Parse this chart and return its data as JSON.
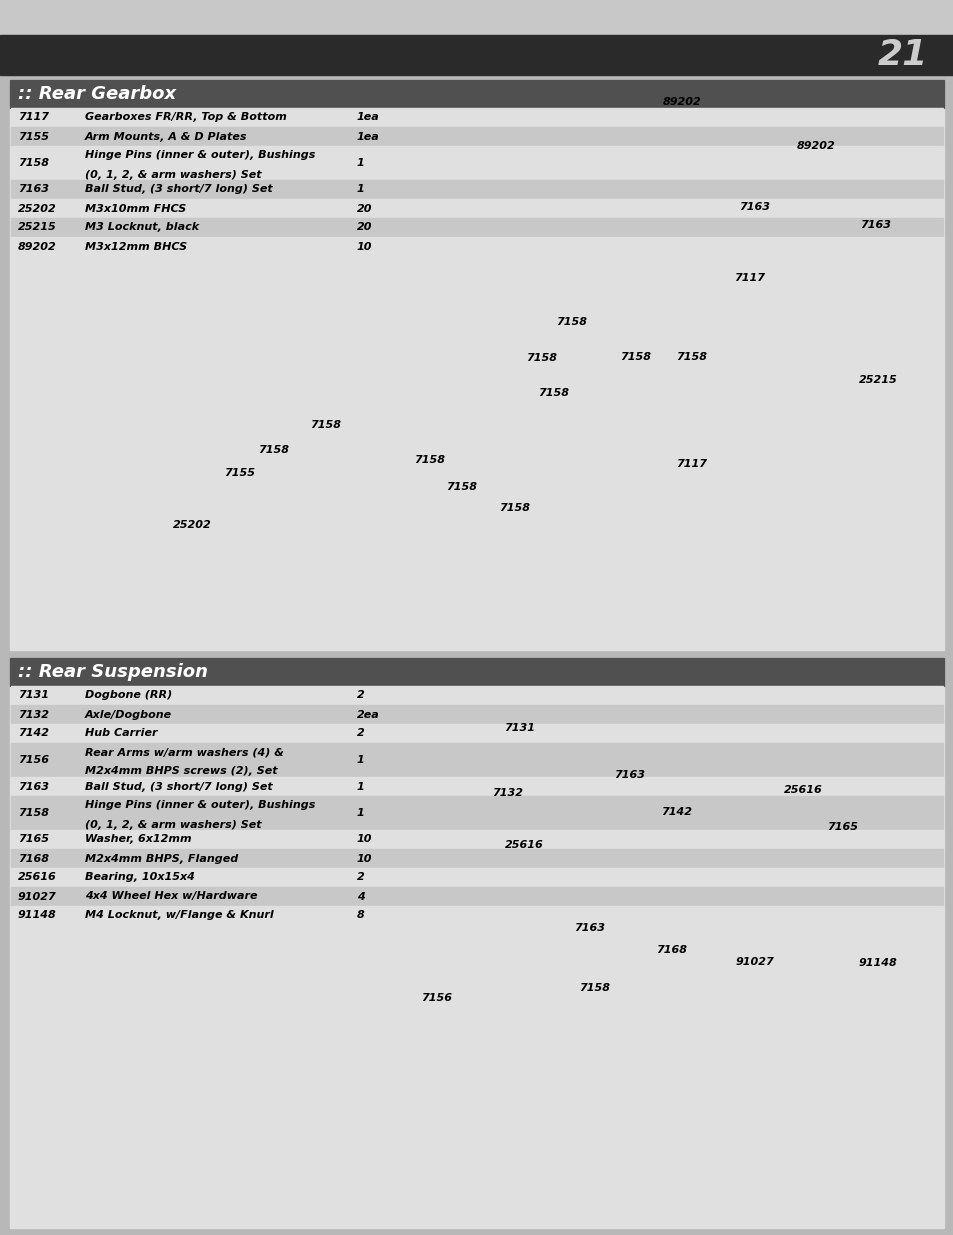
{
  "page_number": "21",
  "bg_outer": "#b8b8b8",
  "bg_panel": "#e0e0e0",
  "bg_row_light": "#e0e0e0",
  "bg_row_dark": "#c8c8c8",
  "section_hdr_bg": "#505050",
  "section_hdr_fg": "#ffffff",
  "header_light": "#c8c8c8",
  "header_dark": "#2a2a2a",
  "border_color": "#999999",
  "text_color": "#000000",
  "section1_title": ":: Rear Gearbox",
  "section1_parts": [
    {
      "pn": "7117",
      "desc": "Gearboxes FR/RR, Top & Bottom",
      "desc2": null,
      "qty": "1ea",
      "shade": false
    },
    {
      "pn": "7155",
      "desc": "Arm Mounts, A & D Plates",
      "desc2": null,
      "qty": "1ea",
      "shade": true
    },
    {
      "pn": "7158",
      "desc": "Hinge Pins (inner & outer), Bushings",
      "desc2": "(0, 1, 2, & arm washers) Set",
      "qty": "1",
      "shade": false
    },
    {
      "pn": "7163",
      "desc": "Ball Stud, (3 short/7 long) Set",
      "desc2": null,
      "qty": "1",
      "shade": true
    },
    {
      "pn": "25202",
      "desc": "M3x10mm FHCS",
      "desc2": null,
      "qty": "20",
      "shade": false
    },
    {
      "pn": "25215",
      "desc": "M3 Locknut, black",
      "desc2": null,
      "qty": "20",
      "shade": true
    },
    {
      "pn": "89202",
      "desc": "M3x12mm BHCS",
      "desc2": null,
      "qty": "10",
      "shade": false
    }
  ],
  "section2_title": ":: Rear Suspension",
  "section2_parts": [
    {
      "pn": "7131",
      "desc": "Dogbone (RR)",
      "desc2": null,
      "qty": "2",
      "shade": false
    },
    {
      "pn": "7132",
      "desc": "Axle/Dogbone",
      "desc2": null,
      "qty": "2ea",
      "shade": true
    },
    {
      "pn": "7142",
      "desc": "Hub Carrier",
      "desc2": null,
      "qty": "2",
      "shade": false
    },
    {
      "pn": "7156",
      "desc": "Rear Arms w/arm washers (4) &",
      "desc2": "M2x4mm BHPS screws (2), Set",
      "qty": "1",
      "shade": true
    },
    {
      "pn": "7163",
      "desc": "Ball Stud, (3 short/7 long) Set",
      "desc2": null,
      "qty": "1",
      "shade": false
    },
    {
      "pn": "7158",
      "desc": "Hinge Pins (inner & outer), Bushings",
      "desc2": "(0, 1, 2, & arm washers) Set",
      "qty": "1",
      "shade": true
    },
    {
      "pn": "7165",
      "desc": "Washer, 6x12mm",
      "desc2": null,
      "qty": "10",
      "shade": false
    },
    {
      "pn": "7168",
      "desc": "M2x4mm BHPS, Flanged",
      "desc2": null,
      "qty": "10",
      "shade": true
    },
    {
      "pn": "25616",
      "desc": "Bearing, 10x15x4",
      "desc2": null,
      "qty": "2",
      "shade": false
    },
    {
      "pn": "91027",
      "desc": "4x4 Wheel Hex w/Hardware",
      "desc2": null,
      "qty": "4",
      "shade": true
    },
    {
      "pn": "91148",
      "desc": "M4 Locknut, w/Flange & Knurl",
      "desc2": null,
      "qty": "8",
      "shade": false
    }
  ],
  "diag1": [
    [
      682,
      102,
      "89202"
    ],
    [
      816,
      146,
      "89202"
    ],
    [
      755,
      207,
      "7163"
    ],
    [
      876,
      225,
      "7163"
    ],
    [
      750,
      278,
      "7117"
    ],
    [
      572,
      322,
      "7158"
    ],
    [
      542,
      358,
      "7158"
    ],
    [
      636,
      357,
      "7158"
    ],
    [
      692,
      357,
      "7158"
    ],
    [
      554,
      393,
      "7158"
    ],
    [
      326,
      425,
      "7158"
    ],
    [
      274,
      450,
      "7158"
    ],
    [
      430,
      460,
      "7158"
    ],
    [
      462,
      487,
      "7158"
    ],
    [
      515,
      508,
      "7158"
    ],
    [
      878,
      380,
      "25215"
    ],
    [
      692,
      464,
      "7117"
    ],
    [
      240,
      473,
      "7155"
    ],
    [
      192,
      525,
      "25202"
    ]
  ],
  "diag2": [
    [
      520,
      728,
      "7131"
    ],
    [
      508,
      793,
      "7132"
    ],
    [
      524,
      845,
      "25616"
    ],
    [
      630,
      775,
      "7163"
    ],
    [
      677,
      812,
      "7142"
    ],
    [
      803,
      790,
      "25616"
    ],
    [
      843,
      827,
      "7165"
    ],
    [
      590,
      928,
      "7163"
    ],
    [
      672,
      950,
      "7168"
    ],
    [
      755,
      962,
      "91027"
    ],
    [
      878,
      963,
      "91148"
    ],
    [
      595,
      988,
      "7158"
    ],
    [
      437,
      998,
      "7156"
    ]
  ]
}
